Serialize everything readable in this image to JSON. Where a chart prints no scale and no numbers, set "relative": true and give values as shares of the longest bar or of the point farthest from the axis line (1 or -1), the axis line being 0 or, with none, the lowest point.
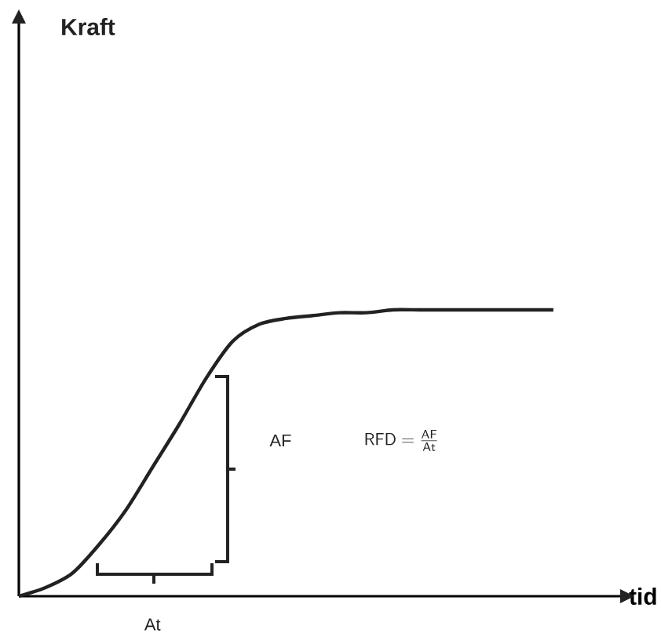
{
  "chart_data": {
    "type": "line",
    "relative": true,
    "xlabel": "tid",
    "color": "#222222",
    "categories": [
      null,
      null,
      null,
      null,
      null,
      null,
      null,
      null,
      null,
      null,
      null,
      null,
      null,
      null,
      null,
      null,
      null,
      null,
      null,
      null,
      null
    ],
    "values": [
      0,
      0.03,
      0.08,
      0.18,
      0.3,
      0.45,
      0.6,
      0.76,
      0.89,
      0.95,
      0.97,
      0.98,
      0.99,
      0.99,
      1,
      1,
      1,
      1,
      1,
      1,
      1
    ],
    "annotations": [
      "Kraft",
      "AF",
      "\\mathsf{RFD} = \\frac{\\mathsf{AF}}{\\mathsf{At}}",
      "At"
    ]
  }
}
